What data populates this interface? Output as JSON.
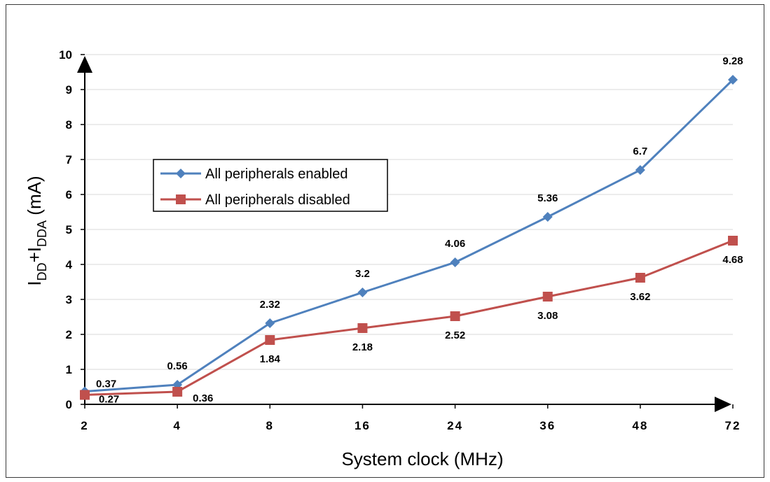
{
  "chart_data": {
    "type": "line",
    "title": "",
    "categories": [
      "2",
      "4",
      "8",
      "16",
      "24",
      "36",
      "48",
      "72"
    ],
    "xlabel": "System clock (MHz)",
    "ylabel": {
      "main": "I",
      "sub1": "DD",
      "mid": "+I",
      "sub2": "DDA",
      "unit": " (mA)"
    },
    "ylim": [
      0,
      10
    ],
    "yticks": [
      "0",
      "1",
      "2",
      "3",
      "4",
      "5",
      "6",
      "7",
      "8",
      "9",
      "10"
    ],
    "grid": true,
    "legend_position": "middle-left",
    "series": [
      {
        "name": "All peripherals enabled",
        "values": [
          0.37,
          0.56,
          2.32,
          3.2,
          4.06,
          5.36,
          6.7,
          9.28
        ],
        "labels": [
          "0.37",
          "0.56",
          "2.32",
          "3.2",
          "4.06",
          "5.36",
          "6.7",
          "9.28"
        ],
        "color": "#4f81bd",
        "marker": "diamond"
      },
      {
        "name": "All peripherals disabled",
        "values": [
          0.27,
          0.36,
          1.84,
          2.18,
          2.52,
          3.08,
          3.62,
          4.68
        ],
        "labels": [
          "0.27",
          "0.36",
          "1.84",
          "2.18",
          "2.52",
          "3.08",
          "3.62",
          "4.68"
        ],
        "color": "#c0504d",
        "marker": "square"
      }
    ]
  }
}
